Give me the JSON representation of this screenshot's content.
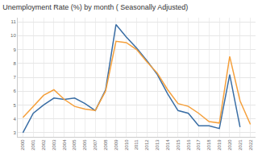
{
  "chart_data": {
    "type": "line",
    "title": "Unemployment Rate (%) by month ( Seasonally Adjusted)",
    "categories": [
      "2000",
      "2001",
      "2002",
      "2003",
      "2004",
      "2005",
      "2006",
      "2007",
      "2008",
      "2009",
      "2010",
      "2011",
      "2012",
      "2013",
      "2014",
      "2015",
      "2016",
      "2017",
      "2018",
      "2019",
      "2020",
      "2021",
      "2022"
    ],
    "series": [
      {
        "color": "#3a6ea5",
        "values": [
          3.0,
          4.4,
          5.0,
          5.5,
          5.4,
          5.5,
          5.1,
          4.6,
          6.1,
          10.8,
          9.9,
          9.1,
          8.2,
          7.2,
          5.8,
          4.6,
          4.4,
          3.5,
          3.5,
          3.3,
          7.2,
          3.4,
          null
        ]
      },
      {
        "color": "#f5a03c",
        "values": [
          4.1,
          4.9,
          5.7,
          6.1,
          5.4,
          4.9,
          4.7,
          4.6,
          6.0,
          9.6,
          9.5,
          9.0,
          8.1,
          7.3,
          6.1,
          5.1,
          4.9,
          4.4,
          3.8,
          3.7,
          8.5,
          5.3,
          3.6
        ]
      }
    ],
    "ylim": [
      2.7,
      11.3
    ],
    "yticks": [
      3,
      4,
      5,
      6,
      7,
      8,
      9,
      10,
      11
    ],
    "grid": true
  }
}
